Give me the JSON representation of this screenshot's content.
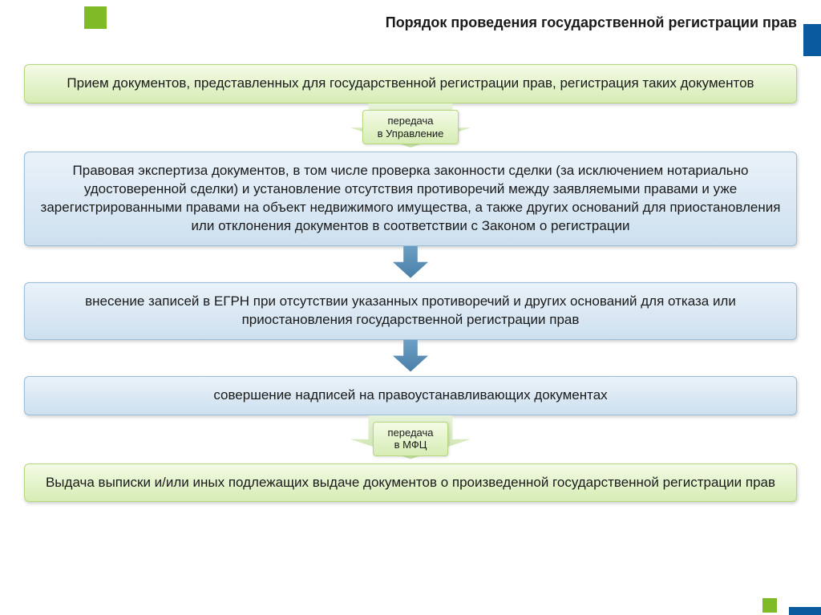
{
  "title": "Порядок проведения государственной регистрации прав",
  "title_fontsize": 18,
  "box_fontsize": 17,
  "arrow_label_fontsize": 13,
  "colors": {
    "green_box_from": "#f4fbe6",
    "green_box_to": "#d6ecb4",
    "green_border": "#b6d77e",
    "blue_box_from": "#eaf2f9",
    "blue_box_to": "#cde0ef",
    "blue_border": "#9abdd8",
    "blue_arrow_from": "#6b9fc4",
    "blue_arrow_to": "#4a7fa8",
    "deco_green": "#7fba27",
    "deco_blue": "#0a5aa0",
    "text": "#1a1a1a",
    "background": "#ffffff"
  },
  "steps": [
    {
      "type": "box",
      "style": "green",
      "text": "Прием документов, представленных для государственной регистрации прав, регистрация таких документов"
    },
    {
      "type": "arrow",
      "label": "передача\nв Управление"
    },
    {
      "type": "box",
      "style": "blue",
      "text": "Правовая экспертиза документов, в том числе проверка законности сделки (за исключением нотариально удостоверенной сделки) и установление отсутствия противоречий между заявляемыми правами и уже зарегистрированными правами на объект недвижимого имущества, а также других оснований для приостановления или отклонения документов в соответствии с Законом о регистрации"
    },
    {
      "type": "arrow"
    },
    {
      "type": "box",
      "style": "blue",
      "text": "внесение записей в ЕГРН при отсутствии указанных противоречий и других оснований для отказа или приостановления государственной регистрации прав"
    },
    {
      "type": "arrow"
    },
    {
      "type": "box",
      "style": "blue",
      "text": "совершение надписей на правоустанавливающих документах"
    },
    {
      "type": "arrow",
      "label": "передача\nв МФЦ"
    },
    {
      "type": "box",
      "style": "green",
      "text": "Выдача выписки и/или иных подлежащих выдаче документов о произведенной государственной регистрации прав"
    }
  ]
}
